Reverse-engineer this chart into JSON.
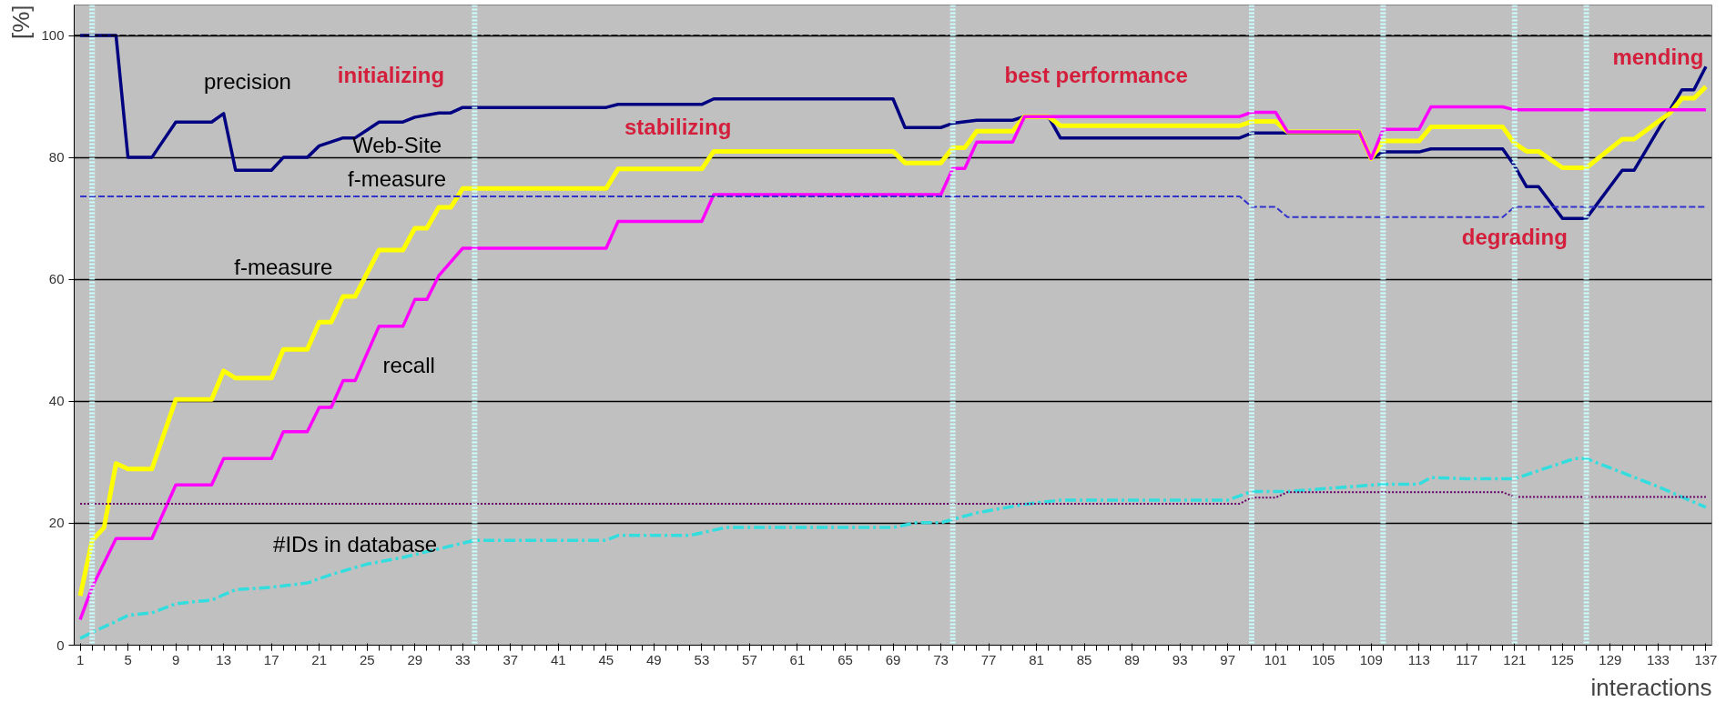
{
  "chart_data": {
    "type": "line",
    "xlabel": "interactions",
    "ylabel": "[%]",
    "xlim": [
      0.5,
      137.5
    ],
    "ylim": [
      0,
      105
    ],
    "xticks": [
      1,
      5,
      9,
      13,
      17,
      21,
      25,
      29,
      33,
      37,
      41,
      45,
      49,
      53,
      57,
      61,
      65,
      69,
      73,
      77,
      81,
      85,
      89,
      93,
      97,
      101,
      105,
      109,
      113,
      117,
      121,
      125,
      129,
      133,
      137
    ],
    "yticks": [
      0,
      20,
      40,
      60,
      80,
      100
    ],
    "grid": "y",
    "marker": "none",
    "series": [
      {
        "name": "precision",
        "color": "#000080",
        "line_style": "solid",
        "x": [
          1,
          4,
          5,
          7,
          9,
          12,
          13,
          14,
          17,
          18,
          20,
          21,
          23,
          24,
          25,
          26,
          28,
          29,
          31,
          32,
          33,
          45,
          46,
          53,
          54,
          69,
          70,
          73,
          74,
          76,
          79,
          80,
          82,
          83,
          98,
          99,
          101,
          102,
          108,
          109,
          110,
          113,
          114,
          120,
          121,
          122,
          123,
          125,
          127,
          130,
          131,
          135,
          136,
          137
        ],
        "values": [
          100,
          100,
          80,
          80,
          85.8,
          85.8,
          87.2,
          77.9,
          77.9,
          80,
          80,
          81.9,
          83.2,
          83.2,
          84.5,
          85.8,
          85.8,
          86.6,
          87.3,
          87.3,
          88.2,
          88.2,
          88.7,
          88.7,
          89.6,
          89.6,
          84.9,
          84.9,
          85.6,
          86.1,
          86.1,
          86.7,
          86.7,
          83.2,
          83.2,
          84,
          84,
          84,
          84,
          79.8,
          80.9,
          80.9,
          81.4,
          81.4,
          78.6,
          75.2,
          75.2,
          70,
          70,
          77.9,
          77.9,
          91.1,
          91.1,
          94.9
        ]
      },
      {
        "name": "f-measure",
        "color": "#ffff00",
        "line_style": "solid",
        "x": [
          1,
          2,
          3,
          4,
          5,
          7,
          9,
          12,
          13,
          14,
          17,
          18,
          20,
          21,
          22,
          23,
          24,
          26,
          28,
          29,
          30,
          31,
          32,
          33,
          45,
          46,
          53,
          54,
          69,
          70,
          73,
          74,
          75,
          76,
          79,
          80,
          82,
          83,
          98,
          99,
          101,
          102,
          108,
          109,
          110,
          113,
          114,
          120,
          121,
          122,
          123,
          125,
          127,
          130,
          131,
          134,
          135,
          136,
          137
        ],
        "values": [
          8.1,
          17.2,
          19.3,
          29.8,
          28.9,
          28.9,
          40.3,
          40.3,
          45,
          43.8,
          43.8,
          48.5,
          48.5,
          53,
          53,
          57.2,
          57.2,
          64.8,
          64.8,
          68.4,
          68.4,
          71.8,
          71.8,
          74.9,
          74.9,
          78.1,
          78.1,
          81,
          81,
          79.1,
          79.1,
          81.6,
          81.6,
          84.3,
          84.3,
          86.7,
          86.7,
          85.2,
          85.2,
          85.9,
          85.9,
          84.2,
          84.2,
          79.8,
          82.7,
          82.7,
          85,
          85,
          82.3,
          81,
          81,
          78.3,
          78.3,
          83,
          83,
          87.3,
          89.7,
          89.7,
          91.6
        ]
      },
      {
        "name": "recall",
        "color": "#ff00ff",
        "line_style": "solid",
        "x": [
          1,
          2,
          4,
          7,
          9,
          12,
          13,
          17,
          18,
          20,
          21,
          22,
          23,
          24,
          26,
          28,
          29,
          30,
          31,
          33,
          45,
          46,
          53,
          54,
          73,
          74,
          75,
          76,
          79,
          80,
          98,
          99,
          101,
          102,
          108,
          109,
          110,
          113,
          114,
          120,
          121,
          137
        ],
        "values": [
          4.2,
          9.5,
          17.5,
          17.5,
          26.3,
          26.3,
          30.6,
          30.6,
          35,
          35,
          39,
          39,
          43.4,
          43.4,
          52.3,
          52.3,
          56.7,
          56.7,
          60.6,
          65.1,
          65.1,
          69.5,
          69.5,
          73.9,
          73.9,
          78.2,
          78.2,
          82.5,
          82.5,
          86.7,
          86.7,
          87.4,
          87.4,
          84.2,
          84.2,
          79.8,
          84.6,
          84.6,
          88.3,
          88.3,
          87.8,
          87.8
        ]
      },
      {
        "name": "#IDs in database",
        "color": "#33dddd",
        "line_style": "dashdot",
        "x": [
          1,
          2,
          4,
          5,
          7,
          9,
          12,
          14,
          17,
          20,
          22,
          25,
          28,
          31,
          34,
          45,
          46,
          52,
          55,
          69,
          71,
          73,
          76,
          80,
          83,
          97,
          99,
          102,
          110,
          113,
          114,
          117,
          121,
          126,
          127,
          133,
          137
        ],
        "values": [
          1.1,
          2.1,
          3.9,
          4.9,
          5.3,
          6.8,
          7.4,
          9.1,
          9.5,
          10.2,
          11.6,
          13.3,
          14.4,
          15.8,
          17.2,
          17.2,
          18,
          18,
          19.3,
          19.3,
          20.1,
          20.1,
          21.7,
          23.1,
          23.8,
          23.8,
          25.2,
          25.2,
          26.4,
          26.4,
          27.5,
          27.3,
          27.3,
          30.6,
          30.6,
          26,
          22.6
        ]
      },
      {
        "name": "Web-Site f-measure",
        "color": "#3333cc",
        "line_style": "dashed",
        "x": [
          1,
          98,
          99,
          101,
          102,
          120,
          121,
          137
        ],
        "values": [
          73.6,
          73.6,
          71.9,
          71.9,
          70.2,
          70.2,
          71.9,
          71.9
        ]
      },
      {
        "color": "#660066",
        "line_style": "dotted",
        "x": [
          1,
          98,
          99,
          101,
          102,
          120,
          121,
          137
        ],
        "values": [
          23.2,
          23.2,
          24.2,
          24.2,
          25.1,
          25.1,
          24.3,
          24.3
        ]
      }
    ],
    "ref_lines": [
      {
        "axis": "y",
        "value": 100,
        "color": "#000000",
        "line_style": "dashed"
      },
      {
        "axis": "x",
        "value": 2,
        "color": "#ccffff",
        "line_style": "dotted"
      },
      {
        "axis": "x",
        "value": 34,
        "color": "#ccffff",
        "line_style": "dotted"
      },
      {
        "axis": "x",
        "value": 74,
        "color": "#ccffff",
        "line_style": "dotted"
      },
      {
        "axis": "x",
        "value": 99,
        "color": "#ccffff",
        "line_style": "dotted"
      },
      {
        "axis": "x",
        "value": 110,
        "color": "#ccffff",
        "line_style": "dotted"
      },
      {
        "axis": "x",
        "value": 121,
        "color": "#ccffff",
        "line_style": "dotted"
      },
      {
        "axis": "x",
        "value": 127,
        "color": "#ccffff",
        "line_style": "dotted"
      }
    ],
    "annotations": [
      "initializing",
      "stabilizing",
      "best performance",
      "degrading",
      "mending"
    ]
  }
}
